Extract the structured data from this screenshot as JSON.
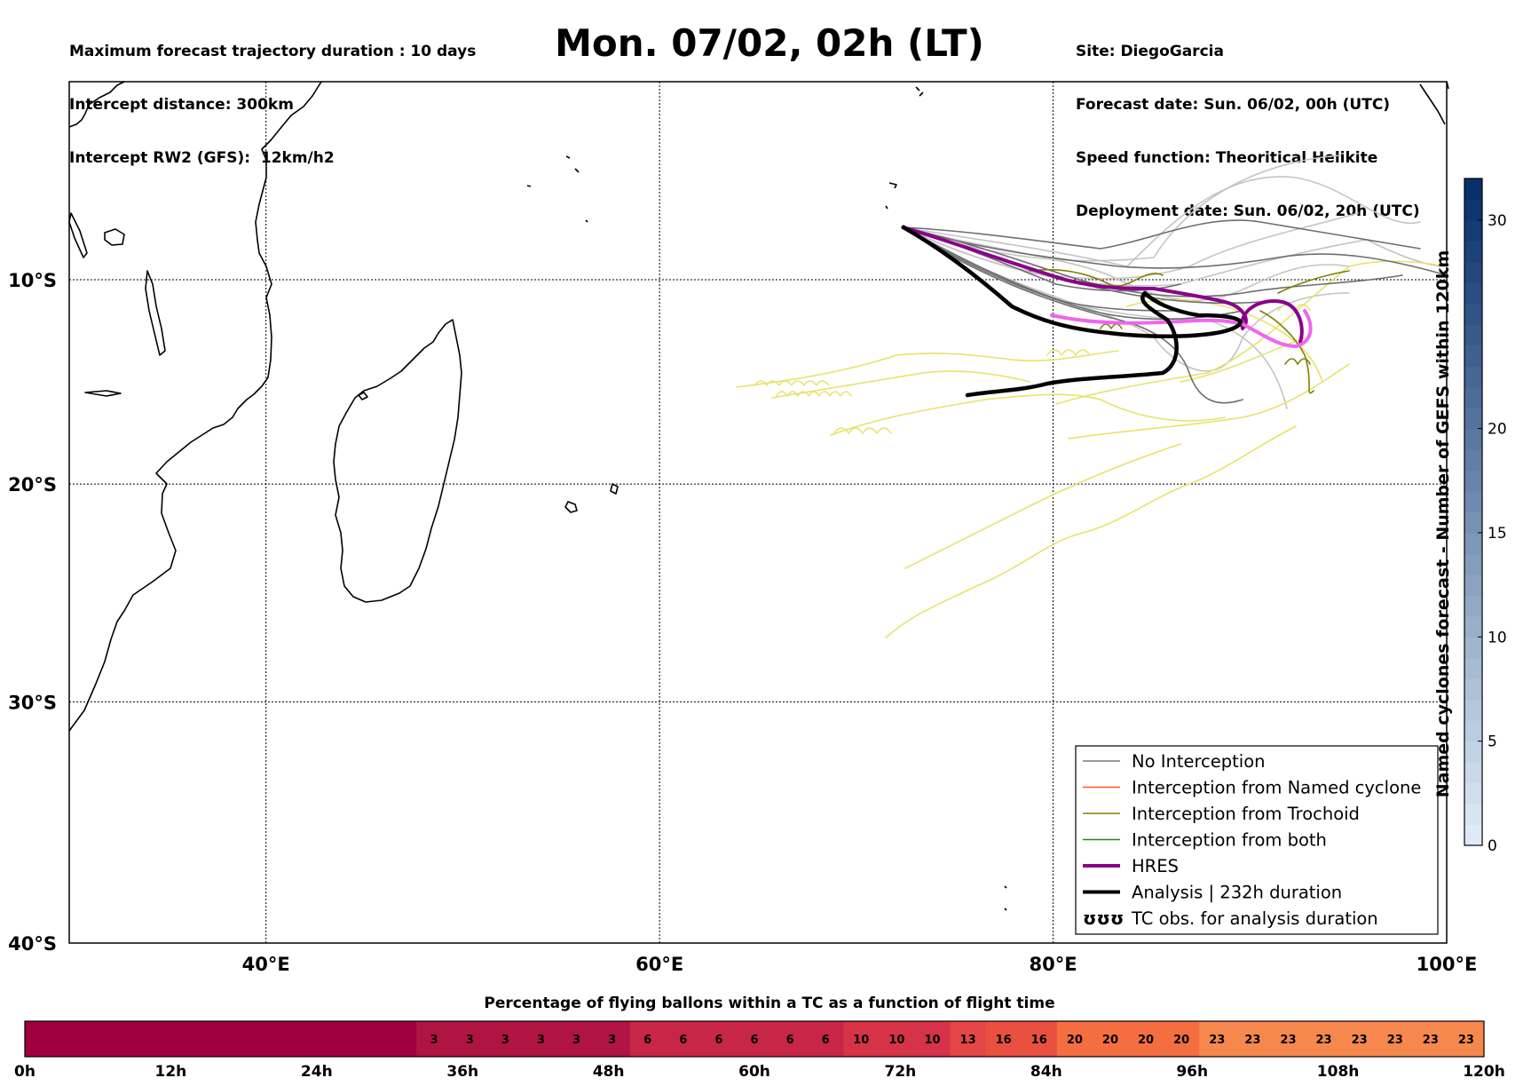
{
  "header": {
    "left": [
      "Maximum forecast trajectory duration : 10 days",
      "Intercept distance: 300km",
      "Intercept RW2 (GFS):  12km/h2"
    ],
    "right": [
      "Site: DiegoGarcia",
      "Forecast date: Sun. 06/02, 00h (UTC)",
      "Speed function: Theoritical Helikite",
      "Deployment date: Sun. 06/02, 20h (UTC)"
    ],
    "title": "Mon. 07/02, 02h (LT)"
  },
  "map": {
    "lon_range": [
      30,
      100
    ],
    "lat_range": [
      -40,
      0
    ],
    "lon_ticks": [
      {
        "value": 40,
        "label": "40°E"
      },
      {
        "value": 60,
        "label": "60°E"
      },
      {
        "value": 80,
        "label": "80°E"
      },
      {
        "value": 100,
        "label": "100°E"
      }
    ],
    "lat_ticks": [
      {
        "value": -10,
        "label": "10°S"
      },
      {
        "value": -20,
        "label": "20°S"
      },
      {
        "value": -30,
        "label": "30°S"
      },
      {
        "value": -40,
        "label": "40°S"
      }
    ],
    "grid": true,
    "deployment_site": {
      "lon": 72.4,
      "lat": -7.3
    }
  },
  "legend": {
    "position": "lower-right",
    "items": [
      {
        "label": "No Interception",
        "color": "#7a7a7a",
        "style": "thin"
      },
      {
        "label": "Interception from Named cyclone",
        "color": "#ff5a1f",
        "style": "thin"
      },
      {
        "label": "Interception from Trochoid",
        "color": "#808000",
        "style": "thin"
      },
      {
        "label": "Interception from both",
        "color": "#1a8a1a",
        "style": "thin"
      },
      {
        "label": "HRES",
        "color": "#8b008b",
        "style": "thick"
      },
      {
        "label": "Analysis | 232h duration",
        "color": "#000000",
        "style": "thick"
      },
      {
        "label": "TC obs. for analysis duration",
        "color": "#000000",
        "style": "loops",
        "symbol": "ʊʊʊ"
      }
    ]
  },
  "vertical_colorbar": {
    "label": "Named cyclones forecast - Number of GEFS within 120km",
    "min": 0,
    "max": 32,
    "ticks": [
      0,
      5,
      10,
      15,
      20,
      30
    ],
    "colors": [
      "#deebf7",
      "#08306b"
    ]
  },
  "bottom_colorbar": {
    "title": "Percentage of flying ballons within a TC as a function of flight time",
    "hour_range": [
      0,
      120
    ],
    "step_hours": 3,
    "values": [
      0,
      0,
      0,
      0,
      0,
      0,
      0,
      0,
      0,
      0,
      0,
      3,
      3,
      3,
      3,
      3,
      3,
      6,
      6,
      6,
      6,
      6,
      6,
      10,
      10,
      10,
      13,
      16,
      16,
      20,
      20,
      20,
      20,
      23,
      23,
      23,
      23,
      23,
      23,
      23,
      23
    ],
    "tick_labels": [
      "0h",
      "12h",
      "24h",
      "36h",
      "48h",
      "60h",
      "72h",
      "84h",
      "96h",
      "108h",
      "120h"
    ]
  },
  "colors": {
    "no_interception": "#6e6e6e",
    "no_interception_light": "#c4c4c4",
    "trochoid": "#808000",
    "yellow_tracks": "#e8e26a",
    "hres": "#8b008b",
    "hres_light": "#ee66ee",
    "analysis": "#000000"
  }
}
